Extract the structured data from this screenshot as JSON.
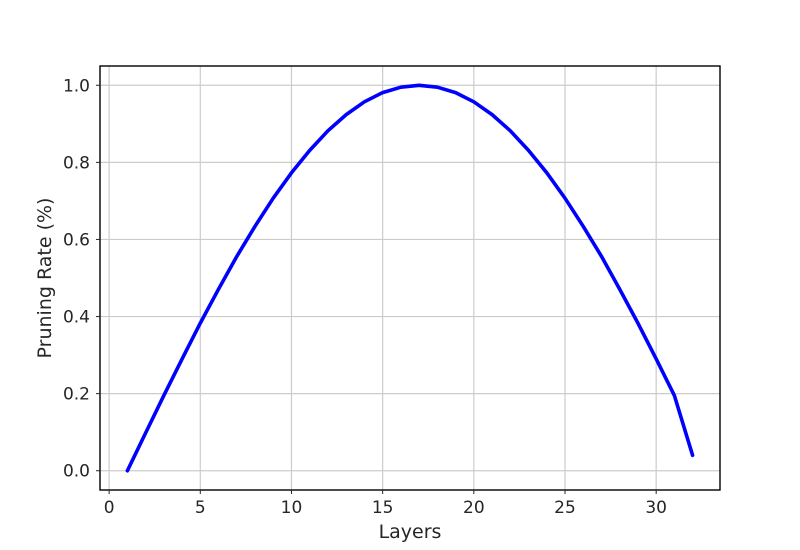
{
  "chart_data": {
    "type": "line",
    "title": "",
    "xlabel": "Layers",
    "ylabel": "Pruning Rate (%)",
    "xlim": [
      -0.5,
      33.5
    ],
    "ylim": [
      -0.05,
      1.05
    ],
    "xticks": [
      0,
      5,
      10,
      15,
      20,
      25,
      30
    ],
    "yticks": [
      0.0,
      0.2,
      0.4,
      0.6,
      0.8,
      1.0
    ],
    "xtick_labels": [
      "0",
      "5",
      "10",
      "15",
      "20",
      "25",
      "30"
    ],
    "ytick_labels": [
      "0.0",
      "0.2",
      "0.4",
      "0.6",
      "0.8",
      "1.0"
    ],
    "grid": true,
    "series": [
      {
        "color": "#0000ff",
        "x": [
          1,
          2,
          3,
          4,
          5,
          6,
          7,
          8,
          9,
          10,
          11,
          12,
          13,
          14,
          15,
          16,
          17,
          18,
          19,
          20,
          21,
          22,
          23,
          24,
          25,
          26,
          27,
          28,
          29,
          30,
          31,
          32
        ],
        "y": [
          0.0,
          0.098,
          0.195,
          0.29,
          0.383,
          0.471,
          0.556,
          0.634,
          0.707,
          0.773,
          0.831,
          0.882,
          0.924,
          0.957,
          0.981,
          0.995,
          1.0,
          0.995,
          0.981,
          0.957,
          0.924,
          0.882,
          0.831,
          0.773,
          0.707,
          0.634,
          0.556,
          0.471,
          0.383,
          0.29,
          0.195,
          0.04
        ]
      }
    ]
  }
}
